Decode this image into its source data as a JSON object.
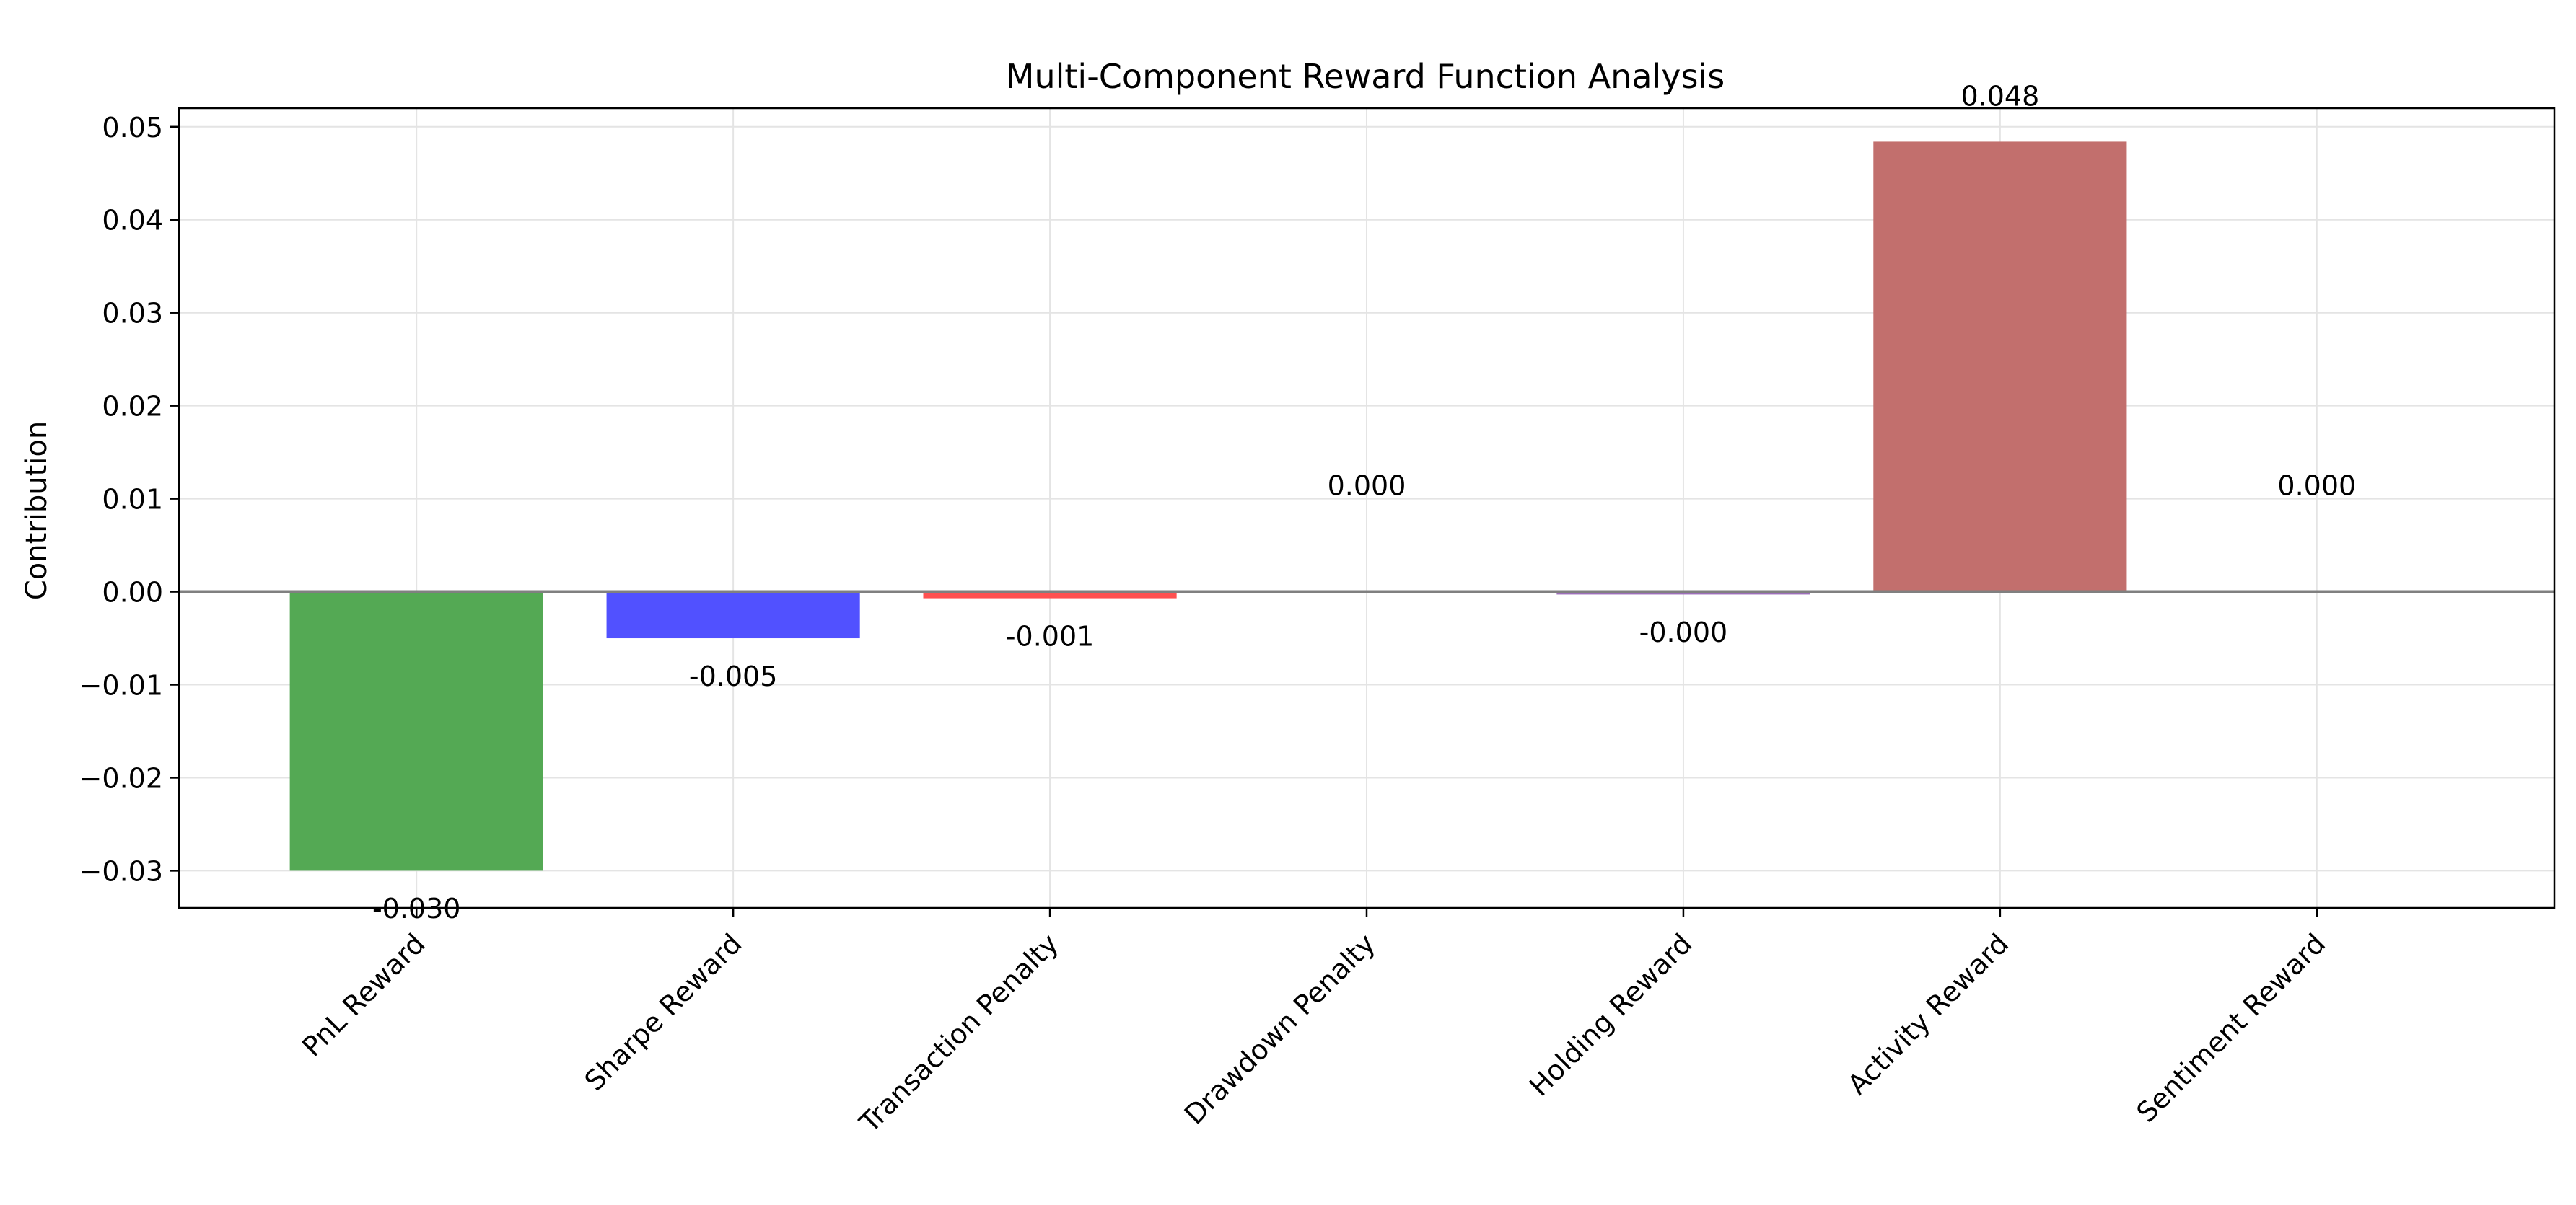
{
  "chart_data": {
    "type": "bar",
    "title": "Multi-Component Reward Function Analysis",
    "xlabel": "",
    "ylabel": "Contribution",
    "categories": [
      "PnL Reward",
      "Sharpe Reward",
      "Transaction Penalty",
      "Drawdown Penalty",
      "Holding Reward",
      "Activity Reward",
      "Sentiment Reward"
    ],
    "values": [
      -0.03,
      -0.005,
      -0.0007,
      0.0,
      -0.0003,
      0.0484,
      0.0
    ],
    "value_labels": [
      "-0.030",
      "-0.005",
      "-0.001",
      "0.000",
      "-0.000",
      "0.048",
      "0.000"
    ],
    "bar_colors": [
      "#4ea64e",
      "#4b4bff",
      "#ff4b4b",
      "#c060c0",
      "#9a6ab8",
      "#c06a68",
      "#e0a0a0"
    ],
    "ylim": [
      -0.034,
      0.052
    ],
    "yticks": [
      0.05,
      0.04,
      0.03,
      0.02,
      0.01,
      0.0,
      -0.01,
      -0.02,
      -0.03
    ],
    "ytick_labels": [
      "0.05",
      "0.04",
      "0.03",
      "0.02",
      "0.01",
      "0.00",
      "−0.01",
      "−0.02",
      "−0.03"
    ],
    "grid": true,
    "zero_line_color": "#808080"
  }
}
